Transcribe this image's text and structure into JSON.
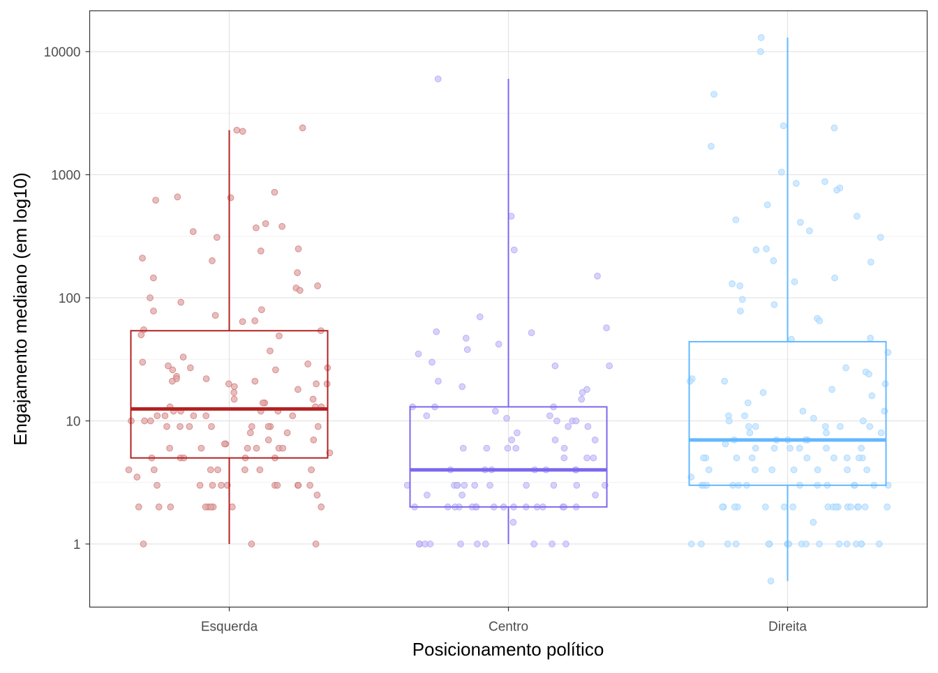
{
  "chart_data": {
    "type": "boxplot",
    "title": "",
    "xlabel": "Posicionamento político",
    "ylabel": "Engajamento mediano (em log10)",
    "yscale": "log10",
    "ylim": [
      0.4,
      20000
    ],
    "yticks": [
      1,
      10,
      100,
      1000,
      10000
    ],
    "ytick_labels": [
      "1",
      "10",
      "100",
      "1000",
      "10000"
    ],
    "grid": true,
    "legend": "none",
    "categories": [
      "Esquerda",
      "Centro",
      "Direita"
    ],
    "colors": [
      "#b22222",
      "#7b68ee",
      "#63b8ff"
    ],
    "boxes": [
      {
        "name": "Esquerda",
        "whisker_low": 1,
        "q1": 5,
        "median": 12.5,
        "q3": 54,
        "whisker_high": 2300
      },
      {
        "name": "Centro",
        "whisker_low": 1,
        "q1": 2,
        "median": 4,
        "q3": 13,
        "whisker_high": 6000
      },
      {
        "name": "Direita",
        "whisker_low": 0.5,
        "q1": 3,
        "median": 7,
        "q3": 44,
        "whisker_high": 13000
      }
    ],
    "points": [
      {
        "name": "Esquerda",
        "values": [
          2400,
          2300,
          2250,
          720,
          660,
          650,
          620,
          400,
          380,
          370,
          345,
          310,
          250,
          240,
          210,
          200,
          160,
          145,
          125,
          120,
          115,
          100,
          92,
          80,
          78,
          72,
          65,
          64,
          55,
          54,
          50,
          49,
          37,
          33,
          30,
          29,
          28,
          27,
          27,
          26,
          26,
          23,
          22,
          22,
          21,
          21,
          20,
          20,
          20,
          19,
          18,
          17,
          15,
          15,
          14,
          14,
          13,
          13,
          13,
          12,
          12,
          12,
          12,
          11,
          11,
          11,
          11,
          11,
          10,
          10,
          10,
          9,
          9,
          9,
          9,
          9,
          9,
          9,
          9,
          8,
          8,
          7,
          7,
          6.5,
          6.5,
          6,
          6,
          6,
          6,
          6,
          6,
          5.5,
          5,
          5,
          5,
          5,
          5,
          4,
          4,
          4,
          4,
          4,
          4,
          4,
          3.5,
          3,
          3,
          3,
          3,
          3,
          3,
          3,
          3,
          3,
          3,
          2.5,
          2,
          2,
          2,
          2,
          2,
          2,
          2,
          2,
          2,
          1,
          1,
          1
        ]
      },
      {
        "name": "Centro",
        "values": [
          6000,
          460,
          245,
          150,
          70,
          57,
          53,
          52,
          47,
          42,
          38,
          35,
          30,
          28,
          28,
          21,
          19,
          18,
          17,
          15,
          13,
          13,
          13,
          12,
          11,
          11,
          10.5,
          10,
          10,
          10,
          9,
          9,
          8,
          7,
          7,
          7,
          6,
          6,
          6,
          6,
          6,
          5,
          5,
          5,
          4,
          4,
          4,
          4,
          4,
          4,
          4,
          3,
          3,
          3,
          3,
          3,
          3,
          3,
          3,
          3,
          3,
          3,
          2.5,
          2.5,
          2.5,
          2,
          2,
          2,
          2,
          2,
          2,
          2,
          2,
          2,
          2,
          2,
          2,
          2,
          2,
          2,
          2,
          1.5,
          1,
          1,
          1,
          1,
          1,
          1,
          1,
          1,
          1,
          1
        ]
      },
      {
        "name": "Direita",
        "values": [
          13000,
          10000,
          4500,
          2500,
          2400,
          1700,
          1050,
          880,
          850,
          780,
          750,
          570,
          460,
          430,
          410,
          350,
          310,
          250,
          245,
          200,
          195,
          145,
          135,
          130,
          125,
          97,
          88,
          78,
          68,
          65,
          47,
          46,
          36,
          27,
          25,
          24,
          22,
          21,
          21,
          20,
          18,
          17,
          16,
          14,
          12,
          12,
          11,
          11,
          10.5,
          10,
          10,
          9,
          9,
          9,
          9,
          9,
          8,
          8,
          8,
          7,
          7,
          7,
          7,
          7,
          6.5,
          6,
          6,
          6,
          6,
          6,
          6,
          5,
          5,
          5,
          5,
          5,
          5,
          5,
          5,
          5,
          4,
          4,
          4,
          4,
          4,
          4,
          4,
          3.5,
          3,
          3,
          3,
          3,
          3,
          3,
          3,
          3,
          3,
          3,
          3,
          3,
          3,
          2,
          2,
          2,
          2,
          2,
          2,
          2,
          2,
          2,
          2,
          2,
          2,
          2,
          2,
          2,
          2,
          2,
          1.5,
          1,
          1,
          1,
          1,
          1,
          1,
          1,
          1,
          1,
          1,
          1,
          1,
          1,
          1,
          1,
          1,
          1,
          1,
          0.5
        ]
      }
    ]
  }
}
